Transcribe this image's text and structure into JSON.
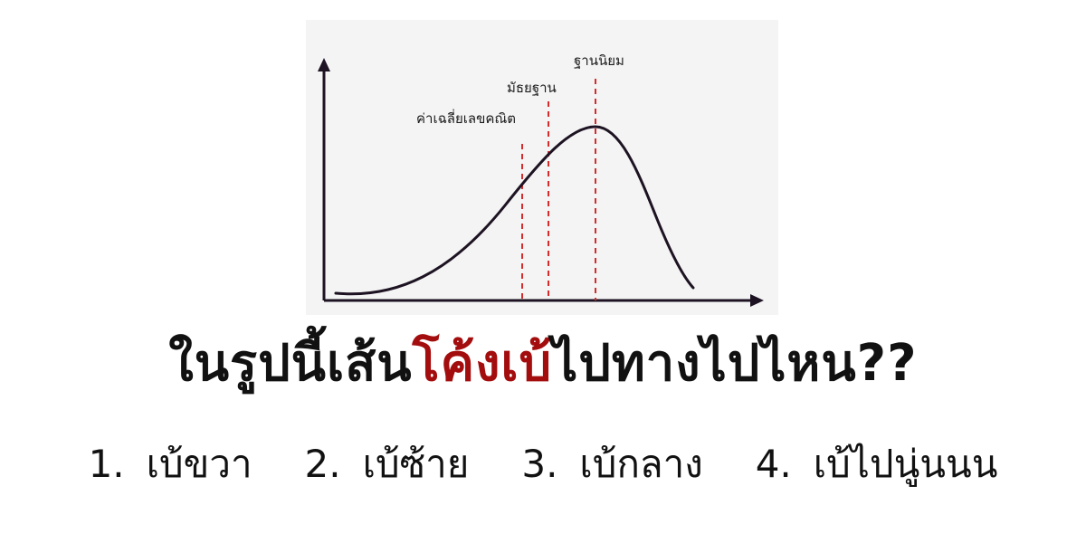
{
  "figure": {
    "markers": [
      {
        "label": "ค่าเฉลี่ยเลขคณิต",
        "color": "#d62b2b"
      },
      {
        "label": "มัธยฐาน",
        "color": "#d62b2b"
      },
      {
        "label": "ฐานนิยม",
        "color": "#d62b2b"
      }
    ],
    "curve_color": "#1d1322",
    "axis_color": "#1d1322"
  },
  "question": {
    "before": "ในรูปนี้เส้น",
    "highlight": "โค้งเบ้",
    "after": "ไปทางไปไหน??",
    "highlight_color": "#a30d0d"
  },
  "options": [
    {
      "num": "1.",
      "text": "เบ้ขวา"
    },
    {
      "num": "2.",
      "text": "เบ้ซ้าย"
    },
    {
      "num": "3.",
      "text": "เบ้กลาง"
    },
    {
      "num": "4.",
      "text": "เบ้ไปนู่นนน"
    }
  ]
}
